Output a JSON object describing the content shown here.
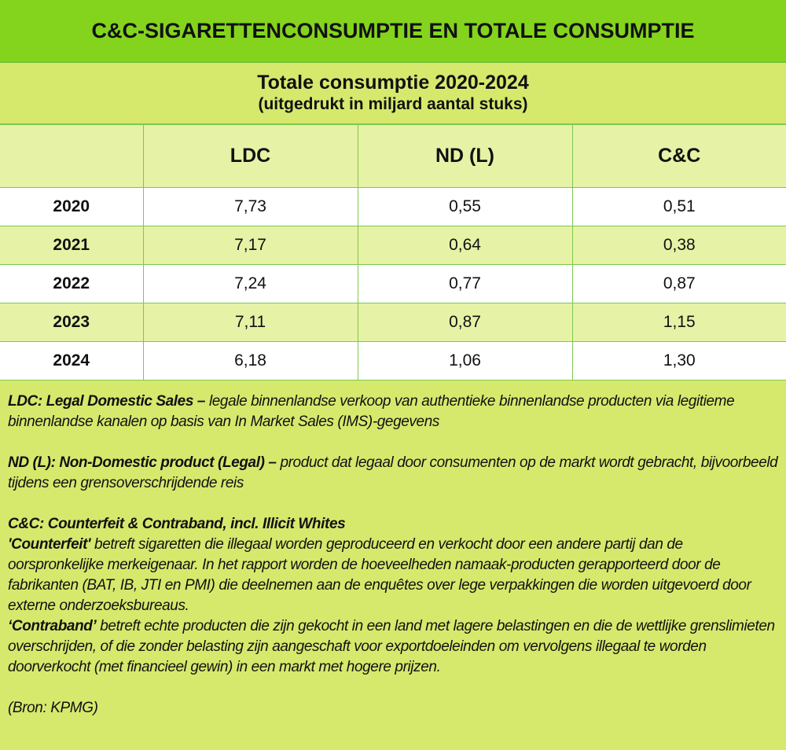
{
  "title": "C&C-SIGARETTENCONSUMPTIE EN TOTALE CONSUMPTIE",
  "subtitle": {
    "line1": "Totale consumptie 2020-2024",
    "line2": "(uitgedrukt in miljard aantal stuks)"
  },
  "table": {
    "columns": [
      "",
      "LDC",
      "ND (L)",
      "C&C"
    ],
    "rows": [
      {
        "year": "2020",
        "ldc": "7,73",
        "nd": "0,55",
        "cc": "0,51"
      },
      {
        "year": "2021",
        "ldc": "7,17",
        "nd": "0,64",
        "cc": "0,38"
      },
      {
        "year": "2022",
        "ldc": "7,24",
        "nd": "0,77",
        "cc": "0,87"
      },
      {
        "year": "2023",
        "ldc": "7,11",
        "nd": "0,87",
        "cc": "1,15"
      },
      {
        "year": "2024",
        "ldc": "6,18",
        "nd": "1,06",
        "cc": "1,30"
      }
    ]
  },
  "notes": {
    "ldc": {
      "term": "LDC: Legal Domestic Sales –",
      "text": " legale binnenlandse verkoop van authentieke binnenlandse producten via legitieme binnenlandse kanalen op basis van In Market Sales (IMS)-gegevens"
    },
    "nd": {
      "term": "ND (L): Non-Domestic product (Legal) –",
      "text": " product dat legaal door consumenten op de markt wordt gebracht, bijvoorbeeld tijdens een grensoverschrijdende reis"
    },
    "cc": {
      "heading": "C&C: Counterfeit & Contraband, incl. Illicit Whites",
      "counterfeit_term": "'Counterfeit'",
      "counterfeit_text": " betreft sigaretten die illegaal worden geproduceerd en verkocht door een andere partij dan de oorspronkelijke merkeigenaar. In het rapport worden de hoeveelheden namaak-producten gerapporteerd door de fabrikanten (BAT, IB, JTI en PMI) die deelnemen aan de enquêtes over lege verpakkingen die worden uitgevoerd door externe onderzoeksbureaus.",
      "contraband_term": "‘Contraband’",
      "contraband_text": " betreft echte producten die zijn gekocht in een land met lagere belastingen en die de wettlijke grenslimieten overschrijden, of die zonder belasting zijn aangeschaft voor exportdoeleinden om vervolgens illegaal te worden doorverkocht (met financieel gewin) in een markt met hogere prijzen."
    },
    "source": "(Bron: KPMG)"
  },
  "colors": {
    "title_bg": "#84d41e",
    "band_bg": "#d6e96d",
    "row_alt": "#e6f2a6",
    "grid": "#7cc850"
  }
}
